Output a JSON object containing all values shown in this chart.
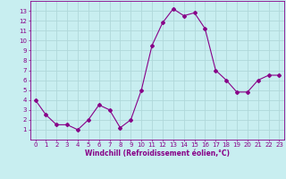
{
  "x": [
    0,
    1,
    2,
    3,
    4,
    5,
    6,
    7,
    8,
    9,
    10,
    11,
    12,
    13,
    14,
    15,
    16,
    17,
    18,
    19,
    20,
    21,
    22,
    23
  ],
  "y": [
    4,
    2.5,
    1.5,
    1.5,
    1,
    2,
    3.5,
    3,
    1.2,
    2,
    5,
    9.5,
    11.8,
    13.2,
    12.5,
    12.8,
    11.2,
    7,
    6,
    4.8,
    4.8,
    6,
    6.5,
    6.5
  ],
  "line_color": "#880088",
  "marker": "D",
  "marker_size": 2.0,
  "bg_color": "#c8eef0",
  "grid_color": "#b0d8da",
  "xlabel": "Windchill (Refroidissement éolien,°C)",
  "xlabel_color": "#880088",
  "tick_color": "#880088",
  "ylim": [
    0,
    14
  ],
  "xlim": [
    -0.5,
    23.5
  ],
  "yticks": [
    1,
    2,
    3,
    4,
    5,
    6,
    7,
    8,
    9,
    10,
    11,
    12,
    13
  ],
  "xticks": [
    0,
    1,
    2,
    3,
    4,
    5,
    6,
    7,
    8,
    9,
    10,
    11,
    12,
    13,
    14,
    15,
    16,
    17,
    18,
    19,
    20,
    21,
    22,
    23
  ],
  "label_fontsize": 5.5,
  "tick_fontsize": 5.0
}
